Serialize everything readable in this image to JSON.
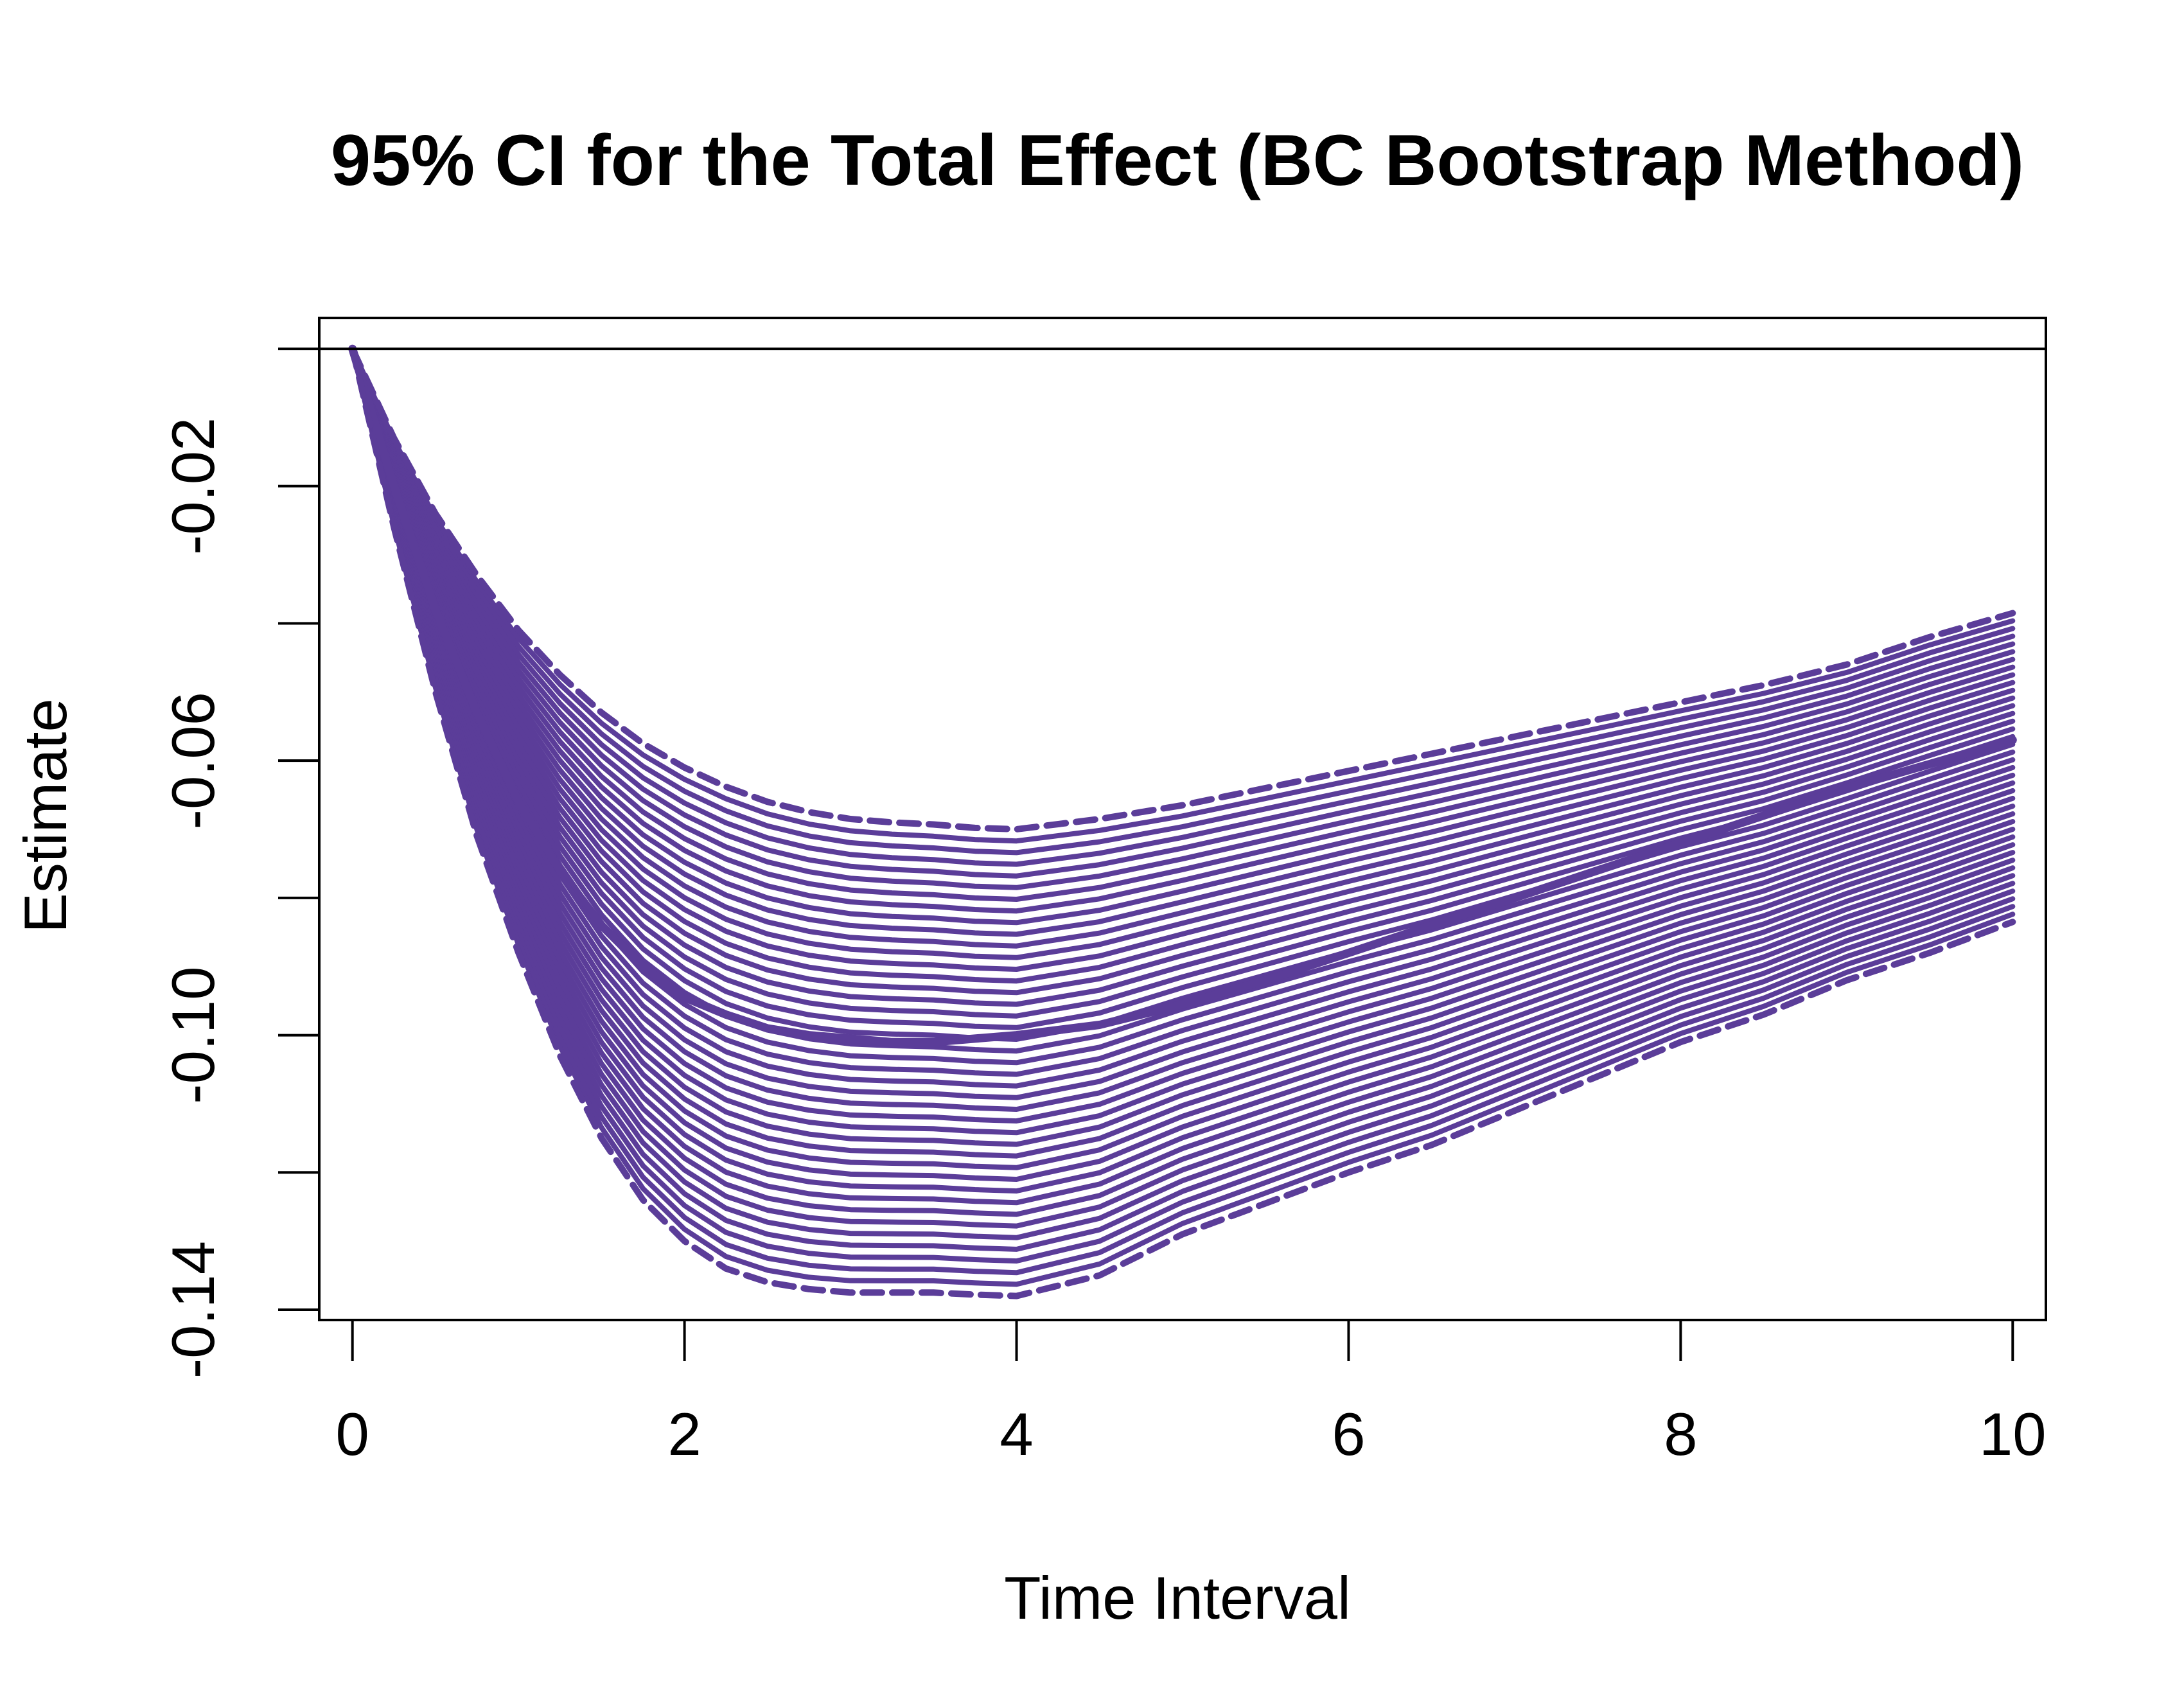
{
  "chart_data": {
    "type": "line",
    "title": "95% CI for the Total Effect (BC Bootstrap Method)",
    "xlabel": "Time Interval",
    "ylabel": "Estimate",
    "xlim": [
      -0.2,
      10.2
    ],
    "ylim": [
      -0.1415,
      0.0045
    ],
    "x_ticks": [
      0,
      2,
      4,
      6,
      8,
      10
    ],
    "x_tick_labels": [
      "0",
      "2",
      "4",
      "6",
      "8",
      "10"
    ],
    "y_ticks": [
      0,
      -0.02,
      -0.04,
      -0.06,
      -0.08,
      -0.1,
      -0.12,
      -0.14
    ],
    "y_tick_labels": [
      "",
      "-0.02",
      "",
      "-0.06",
      "",
      "-0.10",
      "",
      "-0.14"
    ],
    "reference_line": 0,
    "grid": false,
    "legend": "none",
    "line_color": "#5B3D99",
    "x": [
      0,
      0.25,
      0.5,
      0.75,
      1.0,
      1.25,
      1.5,
      1.75,
      2.0,
      2.25,
      2.5,
      2.75,
      3.0,
      3.25,
      3.5,
      3.75,
      4.0,
      4.5,
      5.0,
      5.5,
      6.0,
      6.5,
      7.0,
      7.5,
      8.0,
      8.5,
      9.0,
      9.5,
      10.0
    ],
    "series": [
      {
        "style": "dashed",
        "values": [
          0,
          -0.013,
          -0.024,
          -0.033,
          -0.041,
          -0.0475,
          -0.053,
          -0.0575,
          -0.061,
          -0.0638,
          -0.066,
          -0.0675,
          -0.0685,
          -0.069,
          -0.0693,
          -0.0698,
          -0.07,
          -0.0685,
          -0.0665,
          -0.064,
          -0.0615,
          -0.059,
          -0.0565,
          -0.054,
          -0.0515,
          -0.049,
          -0.046,
          -0.042,
          -0.0385
        ]
      },
      {
        "style": "solid",
        "values": [
          0,
          -0.02,
          -0.038,
          -0.053,
          -0.066,
          -0.076,
          -0.084,
          -0.09,
          -0.0945,
          -0.097,
          -0.099,
          -0.1,
          -0.1005,
          -0.101,
          -0.101,
          -0.1005,
          -0.1,
          -0.0985,
          -0.0955,
          -0.092,
          -0.088,
          -0.084,
          -0.08,
          -0.076,
          -0.072,
          -0.068,
          -0.064,
          -0.0605,
          -0.057
        ]
      },
      {
        "style": "dashed",
        "values": [
          0,
          -0.026,
          -0.05,
          -0.071,
          -0.088,
          -0.103,
          -0.115,
          -0.124,
          -0.13,
          -0.134,
          -0.136,
          -0.137,
          -0.1375,
          -0.1375,
          -0.1375,
          -0.1378,
          -0.138,
          -0.135,
          -0.129,
          -0.1245,
          -0.12,
          -0.116,
          -0.111,
          -0.106,
          -0.101,
          -0.097,
          -0.092,
          -0.088,
          -0.0835
        ]
      }
    ]
  }
}
